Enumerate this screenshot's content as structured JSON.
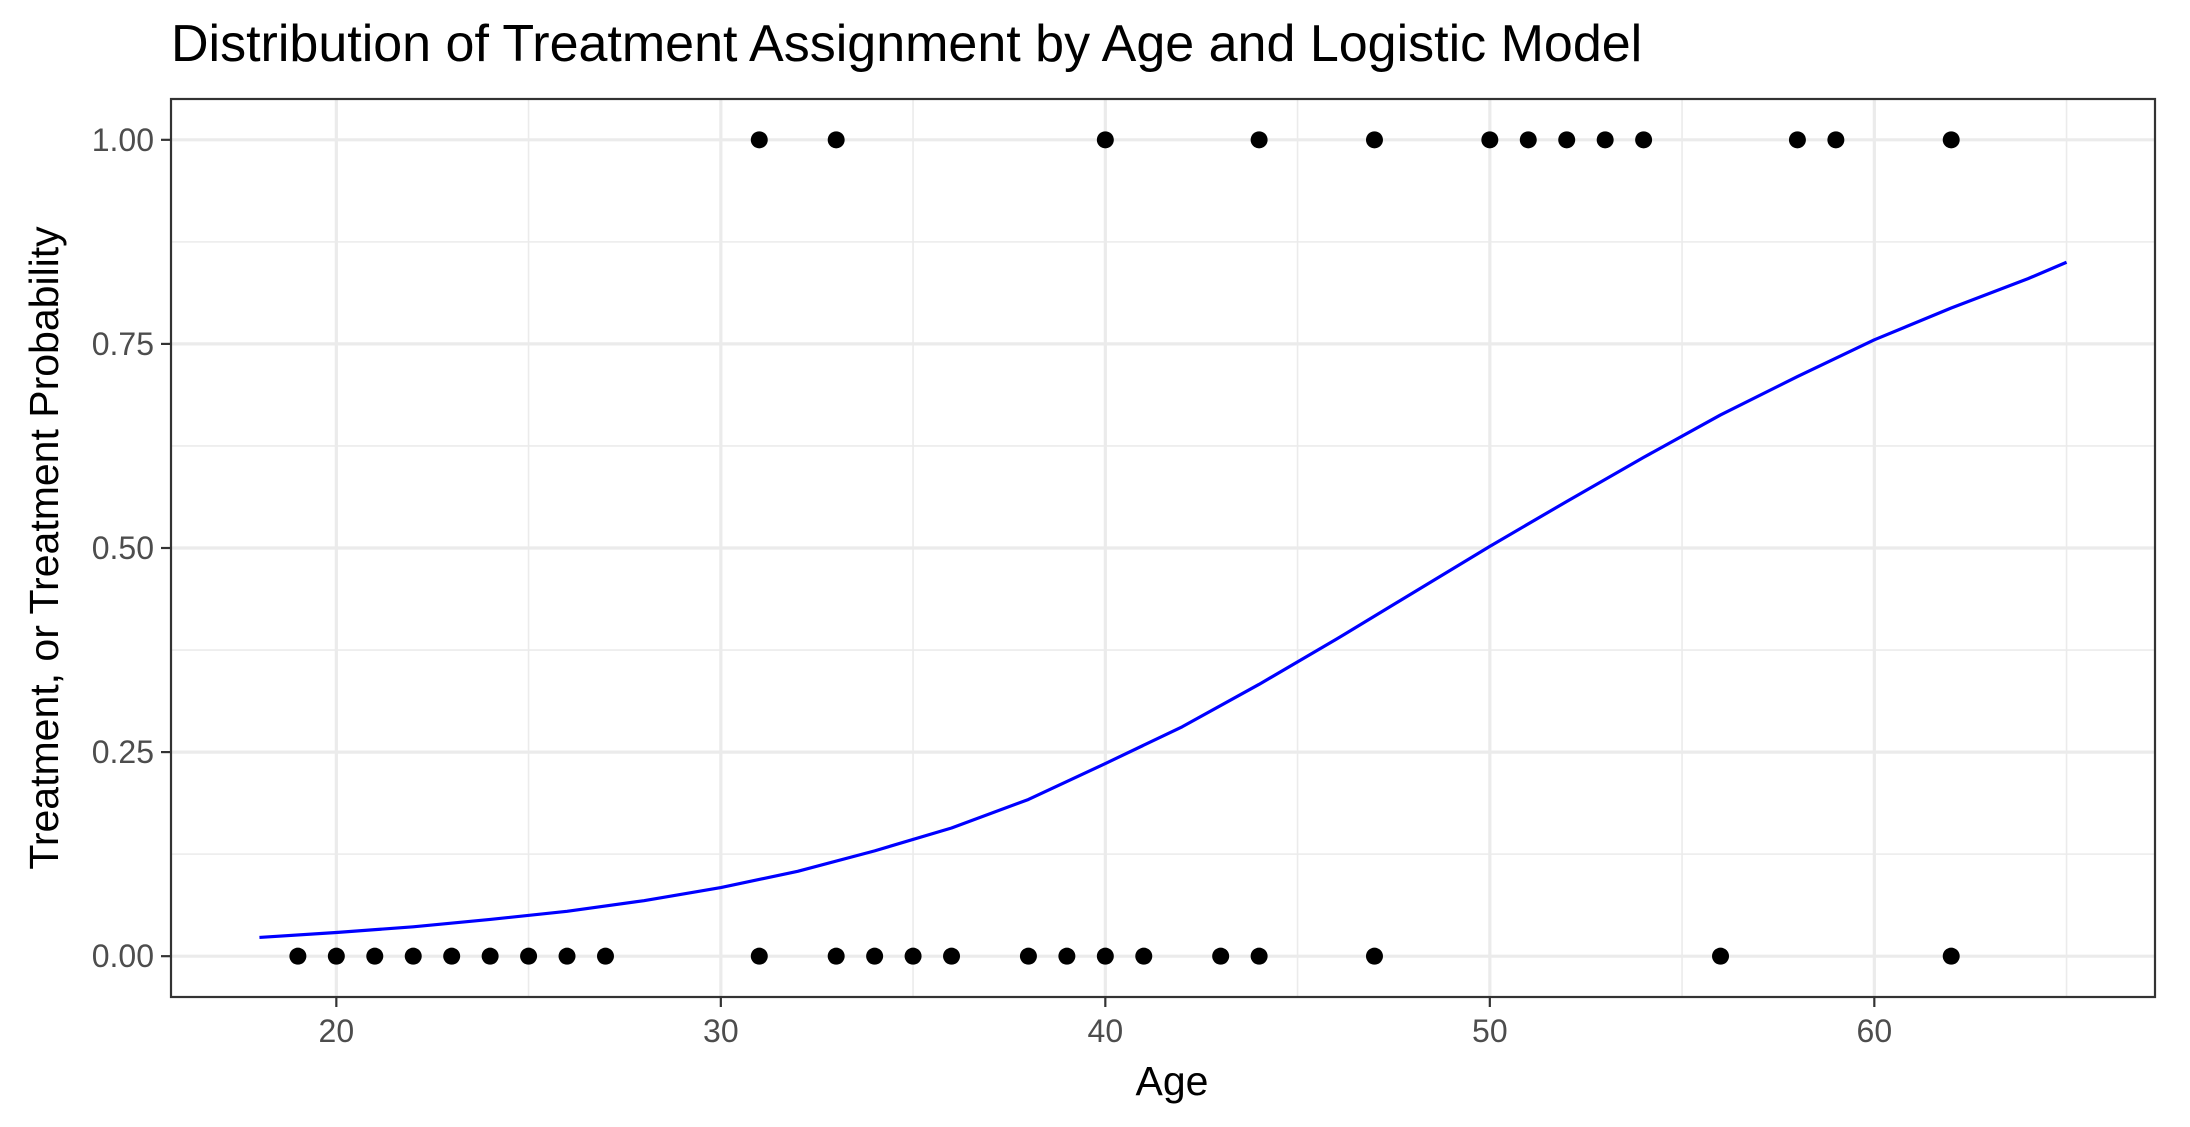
{
  "chart_data": {
    "type": "scatter",
    "title": "Distribution of Treatment Assignment by Age and Logistic Model",
    "xlabel": "Age",
    "ylabel": "Treatment, or Treatment Probability",
    "xlim": [
      15.7,
      67.3
    ],
    "ylim": [
      -0.05,
      1.05
    ],
    "x_ticks": [
      20,
      30,
      40,
      50,
      60
    ],
    "x_tick_labels": [
      "20",
      "30",
      "40",
      "50",
      "60"
    ],
    "y_ticks": [
      0,
      0.25,
      0.5,
      0.75,
      1
    ],
    "y_tick_labels": [
      "0.00",
      "0.25",
      "0.50",
      "0.75",
      "1.00"
    ],
    "grid": true,
    "legend": "none",
    "series": [
      {
        "type": "scatter",
        "color": "#000000",
        "points": [
          {
            "x": 19,
            "y": 0
          },
          {
            "x": 20,
            "y": 0
          },
          {
            "x": 21,
            "y": 0
          },
          {
            "x": 22,
            "y": 0
          },
          {
            "x": 23,
            "y": 0
          },
          {
            "x": 24,
            "y": 0
          },
          {
            "x": 25,
            "y": 0
          },
          {
            "x": 26,
            "y": 0
          },
          {
            "x": 27,
            "y": 0
          },
          {
            "x": 31,
            "y": 0
          },
          {
            "x": 33,
            "y": 0
          },
          {
            "x": 34,
            "y": 0
          },
          {
            "x": 35,
            "y": 0
          },
          {
            "x": 36,
            "y": 0
          },
          {
            "x": 38,
            "y": 0
          },
          {
            "x": 39,
            "y": 0
          },
          {
            "x": 40,
            "y": 0
          },
          {
            "x": 41,
            "y": 0
          },
          {
            "x": 43,
            "y": 0
          },
          {
            "x": 44,
            "y": 0
          },
          {
            "x": 47,
            "y": 0
          },
          {
            "x": 56,
            "y": 0
          },
          {
            "x": 62,
            "y": 0
          },
          {
            "x": 31,
            "y": 1
          },
          {
            "x": 33,
            "y": 1
          },
          {
            "x": 40,
            "y": 1
          },
          {
            "x": 44,
            "y": 1
          },
          {
            "x": 47,
            "y": 1
          },
          {
            "x": 50,
            "y": 1
          },
          {
            "x": 51,
            "y": 1
          },
          {
            "x": 52,
            "y": 1
          },
          {
            "x": 53,
            "y": 1
          },
          {
            "x": 54,
            "y": 1
          },
          {
            "x": 58,
            "y": 1
          },
          {
            "x": 59,
            "y": 1
          },
          {
            "x": 62,
            "y": 1
          }
        ]
      },
      {
        "type": "line",
        "color": "#0000ff",
        "points": [
          {
            "x": 18,
            "y": 0.023
          },
          {
            "x": 20,
            "y": 0.029
          },
          {
            "x": 22,
            "y": 0.036
          },
          {
            "x": 24,
            "y": 0.045
          },
          {
            "x": 26,
            "y": 0.055
          },
          {
            "x": 28,
            "y": 0.068
          },
          {
            "x": 30,
            "y": 0.084
          },
          {
            "x": 32,
            "y": 0.104
          },
          {
            "x": 34,
            "y": 0.129
          },
          {
            "x": 36,
            "y": 0.157
          },
          {
            "x": 38,
            "y": 0.192
          },
          {
            "x": 40,
            "y": 0.236
          },
          {
            "x": 42,
            "y": 0.281
          },
          {
            "x": 44,
            "y": 0.333
          },
          {
            "x": 46,
            "y": 0.388
          },
          {
            "x": 48,
            "y": 0.445
          },
          {
            "x": 50,
            "y": 0.502
          },
          {
            "x": 52,
            "y": 0.557
          },
          {
            "x": 54,
            "y": 0.611
          },
          {
            "x": 56,
            "y": 0.663
          },
          {
            "x": 58,
            "y": 0.71
          },
          {
            "x": 60,
            "y": 0.755
          },
          {
            "x": 62,
            "y": 0.794
          },
          {
            "x": 64,
            "y": 0.83
          },
          {
            "x": 65,
            "y": 0.85
          }
        ]
      }
    ]
  }
}
